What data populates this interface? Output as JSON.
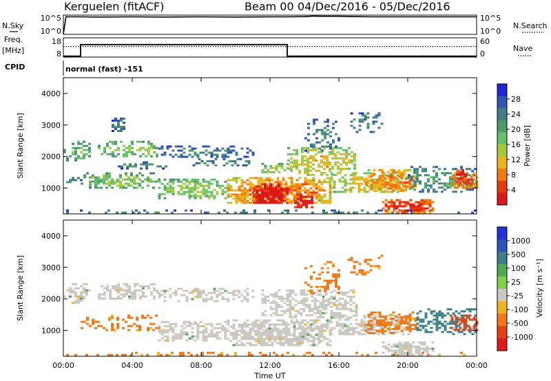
{
  "header": {
    "site": "Kerguelen (fitACF)",
    "beam": "Beam 00",
    "date_range": "04/Dec/2016 - 05/Dec/2016"
  },
  "colors": {
    "power_scale": [
      "#1f24d6",
      "#2f55b0",
      "#3f7f85",
      "#4d9a6a",
      "#66c06a",
      "#a6c83a",
      "#f0b21a",
      "#f07a12",
      "#e63a10",
      "#dd1818"
    ],
    "velocity_scale": [
      "#1f33d8",
      "#2b55b8",
      "#3b7f8a",
      "#4faa55",
      "#7fd04a",
      "#c9c9c3",
      "#f2b21c",
      "#f0781a",
      "#e64112",
      "#e01818"
    ],
    "ground_scatter": "#c9c7c0"
  },
  "chart_data": [
    {
      "type": "line",
      "name": "status-nsky",
      "left_label": "N.Sky",
      "right_label": "N.Search",
      "left_ticks": [
        "10^5",
        "10^0"
      ],
      "right_ticks": [
        "10^5",
        "10^0"
      ],
      "x": [
        0,
        0.15,
        0.3,
        1,
        2,
        4,
        6,
        8,
        10,
        12,
        13,
        14,
        14.5,
        15,
        16,
        17,
        18,
        20,
        22,
        24
      ],
      "y": [
        0.1,
        4.6,
        4.55,
        4.55,
        4.5,
        4.55,
        4.5,
        4.55,
        4.5,
        4.55,
        4.55,
        4.6,
        4.75,
        4.7,
        4.7,
        4.6,
        4.55,
        4.55,
        4.55,
        4.55
      ],
      "ylim": [
        0,
        5
      ]
    },
    {
      "type": "line",
      "name": "status-freq",
      "left_label": "Freq.",
      "left_unit": "[MHz]",
      "right_label": "Nave",
      "left_ticks": [
        "18",
        "8"
      ],
      "right_ticks": [
        "60",
        "0"
      ],
      "freq_x": [
        0,
        1,
        1,
        13,
        13,
        24
      ],
      "freq_y": [
        8.5,
        8.5,
        14.5,
        14.5,
        8.5,
        8.5
      ],
      "nave_x": [
        0,
        24
      ],
      "nave_y": [
        13.5,
        13.5
      ],
      "ylim": [
        8,
        18
      ]
    },
    {
      "type": "table",
      "name": "cpid",
      "label": "CPID",
      "value": "normal (fast) -151"
    },
    {
      "type": "heatmap",
      "name": "power",
      "ylabel": "Slant Range [km]",
      "colorbar_label": "Power [dB]",
      "colorbar_ticks": [
        "28",
        "24",
        "20",
        "16",
        "12",
        "8",
        "4"
      ],
      "clim": [
        0,
        30
      ],
      "xlim": [
        0,
        24
      ],
      "ylim": [
        180,
        4500
      ],
      "yticks": [
        "4000",
        "3000",
        "2000",
        "1000"
      ],
      "ytick_values": [
        4000,
        3000,
        2000,
        1000
      ],
      "bands": [
        {
          "t0": 0.0,
          "t1": 24.0,
          "r0": 200,
          "r1": 320,
          "p": 8,
          "d": 0.3
        },
        {
          "t0": 0.0,
          "t1": 1.0,
          "r0": 1150,
          "r1": 1350,
          "p": 9,
          "d": 0.35
        },
        {
          "t0": 1.0,
          "t1": 5.5,
          "r0": 1000,
          "r1": 1500,
          "p": 14,
          "d": 0.55
        },
        {
          "t0": 5.5,
          "t1": 9.5,
          "r0": 700,
          "r1": 1300,
          "p": 15,
          "d": 0.65
        },
        {
          "t0": 9.5,
          "t1": 15.5,
          "r0": 500,
          "r1": 1350,
          "p": 22,
          "d": 0.85
        },
        {
          "t0": 11.0,
          "t1": 13.0,
          "r0": 520,
          "r1": 1150,
          "p": 30,
          "d": 0.95
        },
        {
          "t0": 13.4,
          "t1": 14.4,
          "r0": 420,
          "r1": 820,
          "p": 30,
          "d": 0.95
        },
        {
          "t0": 15.5,
          "t1": 20.0,
          "r0": 850,
          "r1": 1500,
          "p": 18,
          "d": 0.65
        },
        {
          "t0": 0.0,
          "t1": 1.5,
          "r0": 1900,
          "r1": 2500,
          "p": 12,
          "d": 0.45
        },
        {
          "t0": 2.0,
          "t1": 5.5,
          "r0": 2000,
          "r1": 2500,
          "p": 14,
          "d": 0.55
        },
        {
          "t0": 5.5,
          "t1": 11.0,
          "r0": 2000,
          "r1": 2350,
          "p": 8,
          "d": 0.45
        },
        {
          "t0": 3.0,
          "t1": 6.0,
          "r0": 1650,
          "r1": 1850,
          "p": 8,
          "d": 0.45
        },
        {
          "t0": 7.5,
          "t1": 11.0,
          "r0": 1700,
          "r1": 1950,
          "p": 8,
          "d": 0.4
        },
        {
          "t0": 11.5,
          "t1": 13.0,
          "r0": 1500,
          "r1": 1800,
          "p": 16,
          "d": 0.5
        },
        {
          "t0": 13.0,
          "t1": 17.0,
          "r0": 1400,
          "r1": 2300,
          "p": 18,
          "d": 0.6
        },
        {
          "t0": 14.0,
          "t1": 16.0,
          "r0": 2200,
          "r1": 3200,
          "p": 8,
          "d": 0.35
        },
        {
          "t0": 16.5,
          "t1": 18.5,
          "r0": 2800,
          "r1": 3400,
          "p": 8,
          "d": 0.35
        },
        {
          "t0": 2.8,
          "t1": 3.6,
          "r0": 2800,
          "r1": 3300,
          "p": 8,
          "d": 0.45
        },
        {
          "t0": 17.5,
          "t1": 20.5,
          "r0": 900,
          "r1": 1600,
          "p": 22,
          "d": 0.7
        },
        {
          "t0": 18.5,
          "t1": 21.5,
          "r0": 250,
          "r1": 650,
          "p": 26,
          "d": 0.85
        },
        {
          "t0": 20.0,
          "t1": 24.0,
          "r0": 900,
          "r1": 1700,
          "p": 10,
          "d": 0.45
        },
        {
          "t0": 22.5,
          "t1": 24.0,
          "r0": 1000,
          "r1": 1500,
          "p": 24,
          "d": 0.75
        },
        {
          "t0": 22.8,
          "t1": 23.4,
          "r0": 1300,
          "r1": 1600,
          "p": 28,
          "d": 0.7
        }
      ]
    },
    {
      "type": "heatmap",
      "name": "velocity",
      "xlabel": "Time UT",
      "ylabel": "Slant Range [km]",
      "colorbar_label": "Velocity [m s⁻¹]",
      "colorbar_ticks": [
        "1000",
        "500",
        "100",
        "25",
        "-25",
        "-100",
        "-500",
        "-1000"
      ],
      "xlim": [
        0,
        24
      ],
      "ylim": [
        180,
        4500
      ],
      "xticks": [
        "00:00",
        "04:00",
        "08:00",
        "12:00",
        "16:00",
        "20:00",
        "00:00"
      ],
      "xtick_values": [
        0,
        4,
        8,
        12,
        16,
        20,
        24
      ],
      "yticks": [
        "4000",
        "3000",
        "2000",
        "1000"
      ],
      "ytick_values": [
        4000,
        3000,
        2000,
        1000
      ],
      "bands": [
        {
          "t0": 0.0,
          "t1": 24.0,
          "r0": 200,
          "r1": 320,
          "v": -150,
          "d": 0.25
        },
        {
          "t0": 1.0,
          "t1": 5.5,
          "r0": 1000,
          "r1": 1500,
          "v": -150,
          "d": 0.35
        },
        {
          "t0": 5.5,
          "t1": 9.5,
          "r0": 700,
          "r1": 1300,
          "v": 0,
          "d": 0.55
        },
        {
          "t0": 9.5,
          "t1": 15.5,
          "r0": 500,
          "r1": 1350,
          "v": 0,
          "d": 0.85
        },
        {
          "t0": 15.5,
          "t1": 20.0,
          "r0": 850,
          "r1": 1500,
          "v": 0,
          "d": 0.65
        },
        {
          "t0": 0.0,
          "t1": 1.5,
          "r0": 1900,
          "r1": 2500,
          "v": 0,
          "d": 0.5
        },
        {
          "t0": 2.0,
          "t1": 5.5,
          "r0": 2000,
          "r1": 2500,
          "v": 0,
          "d": 0.55
        },
        {
          "t0": 5.5,
          "t1": 11.0,
          "r0": 1950,
          "r1": 2350,
          "v": 0,
          "d": 0.5
        },
        {
          "t0": 11.5,
          "t1": 17.0,
          "r0": 1400,
          "r1": 2300,
          "v": 0,
          "d": 0.6
        },
        {
          "t0": 14.0,
          "t1": 16.0,
          "r0": 2200,
          "r1": 3200,
          "v": -150,
          "d": 0.35
        },
        {
          "t0": 16.5,
          "t1": 18.5,
          "r0": 2800,
          "r1": 3400,
          "v": -150,
          "d": 0.3
        },
        {
          "t0": 17.5,
          "t1": 20.5,
          "r0": 900,
          "r1": 1600,
          "v": -150,
          "d": 0.55
        },
        {
          "t0": 18.2,
          "t1": 18.8,
          "r0": 1150,
          "r1": 1400,
          "v": -200,
          "d": 0.85
        },
        {
          "t0": 19.5,
          "t1": 20.0,
          "r0": 1200,
          "r1": 1450,
          "v": -250,
          "d": 0.75
        },
        {
          "t0": 18.5,
          "t1": 21.5,
          "r0": 250,
          "r1": 650,
          "v": 0,
          "d": 0.8
        },
        {
          "t0": 20.5,
          "t1": 24.0,
          "r0": 900,
          "r1": 1700,
          "v": 200,
          "d": 0.5
        },
        {
          "t0": 22.5,
          "t1": 24.0,
          "r0": 1000,
          "r1": 1500,
          "v": -600,
          "d": 0.55
        }
      ]
    }
  ]
}
